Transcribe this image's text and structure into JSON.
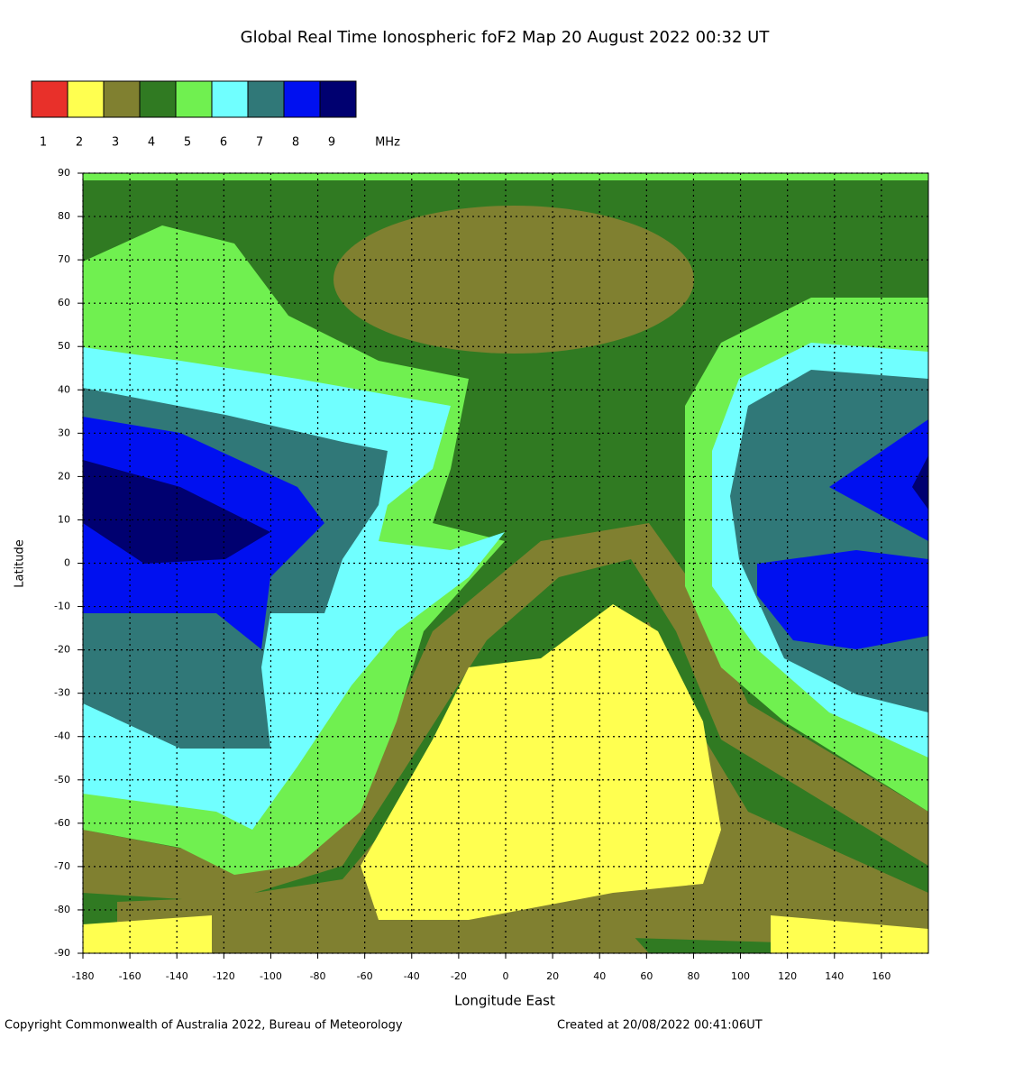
{
  "title": "Global Real Time Ionospheric foF2 Map  20 August 2022 00:32 UT",
  "legend": {
    "items": [
      {
        "label": 1,
        "color": "#e8302a"
      },
      {
        "label": 2,
        "color": "#ffff50"
      },
      {
        "label": 3,
        "color": "#808030"
      },
      {
        "label": 4,
        "color": "#307a22"
      },
      {
        "label": 5,
        "color": "#70f050"
      },
      {
        "label": 6,
        "color": "#70ffff"
      },
      {
        "label": 7,
        "color": "#307878"
      },
      {
        "label": 8,
        "color": "#0010f0"
      },
      {
        "label": 9,
        "color": "#000070"
      }
    ],
    "unit": "MHz"
  },
  "map": {
    "xlim": [
      -180,
      180
    ],
    "ylim": [
      -90,
      90
    ],
    "xticks": [
      -180,
      -160,
      -140,
      -120,
      -100,
      -80,
      -60,
      -40,
      -20,
      0,
      20,
      40,
      60,
      80,
      100,
      120,
      140,
      160
    ],
    "yticks": [
      90,
      80,
      70,
      60,
      50,
      40,
      30,
      20,
      10,
      0,
      -10,
      -20,
      -30,
      -40,
      -50,
      -60,
      -70,
      -80,
      -90
    ],
    "xlabel": "Longitude East",
    "ylabel": "Latitude",
    "grid": true
  },
  "footer": {
    "copyright": "Copyright Commonwealth of Australia 2022, Bureau of Meteorology",
    "created": "Created at 20/08/2022 00:41:06UT"
  }
}
